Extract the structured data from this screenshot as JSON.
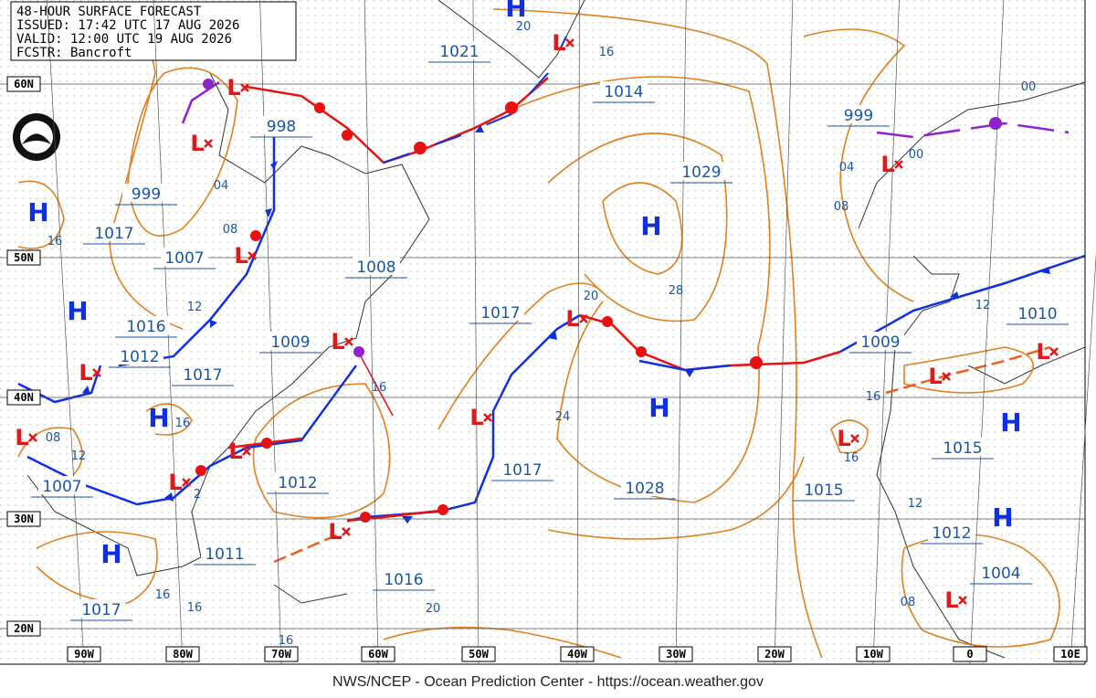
{
  "header": [
    "48-HOUR SURFACE FORECAST",
    "ISSUED: 17:42 UTC 17 AUG 2026",
    "VALID:  12:00 UTC 19 AUG 2026",
    "FCSTR:  Bancroft"
  ],
  "lat_labels": [
    "60N",
    "50N",
    "40N",
    "30N",
    "20N"
  ],
  "lon_labels": [
    "90W",
    "80W",
    "70W",
    "60W",
    "50W",
    "40W",
    "30W",
    "20W",
    "10W",
    "0",
    "10E"
  ],
  "pressure_labels": [
    "1021",
    "1014",
    "998",
    "999",
    "999",
    "1029",
    "1017",
    "1007",
    "1008",
    "1017",
    "1016",
    "1010",
    "1012",
    "1009",
    "1017",
    "1009",
    "1015",
    "1017",
    "1028",
    "1012",
    "1015",
    "1007",
    "1012",
    "1011",
    "1004",
    "1016",
    "1017"
  ],
  "highs": [
    "H",
    "H",
    "H",
    "H",
    "H",
    "H",
    "H",
    "H",
    "H"
  ],
  "lows": [
    "L",
    "L",
    "L",
    "L",
    "L",
    "L",
    "L",
    "L",
    "L",
    "L",
    "L",
    "L",
    "L",
    "L",
    "L",
    "L",
    "L"
  ],
  "isobar_labels": [
    "20",
    "16",
    "04",
    "08",
    "16",
    "12",
    "16",
    "16",
    "08",
    "12",
    "2",
    "28",
    "20",
    "24",
    "16",
    "16",
    "12",
    "12",
    "08",
    "16",
    "16",
    "16",
    "20",
    "00",
    "00",
    "04",
    "08"
  ],
  "footer": "NWS/NCEP - Ocean Prediction Center - https://ocean.weather.gov"
}
